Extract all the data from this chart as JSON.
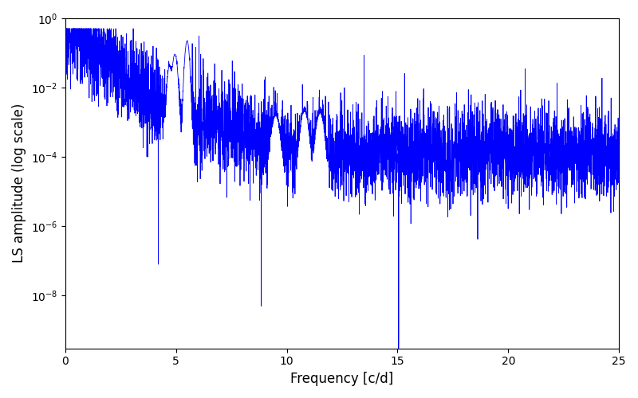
{
  "title": "",
  "xlabel": "Frequency [c/d]",
  "ylabel": "LS amplitude (log scale)",
  "line_color": "blue",
  "xlim": [
    0,
    25
  ],
  "ylim": [
    3e-10,
    1.0
  ],
  "figsize": [
    8.0,
    5.0
  ],
  "dpi": 100,
  "seed": 77,
  "n_points": 5000,
  "freq_max": 25.0,
  "background_color": "#ffffff",
  "linewidth": 0.6
}
